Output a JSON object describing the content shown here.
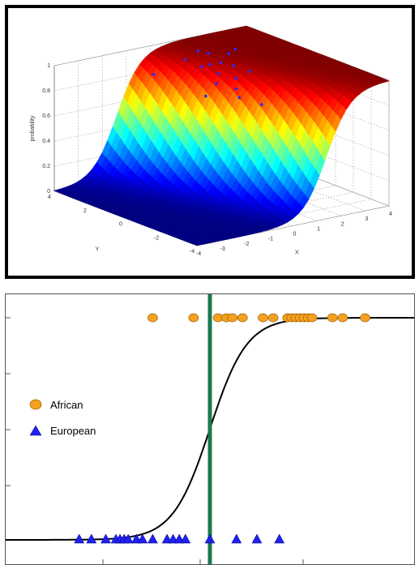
{
  "chart_data": [
    {
      "type": "surface",
      "title": "",
      "xlabel": "X",
      "ylabel": "Y",
      "zlabel": "probability",
      "xlim": [
        -4,
        4
      ],
      "ylim": [
        -4,
        4
      ],
      "zlim": [
        0,
        1
      ],
      "x_ticks": [
        "-4",
        "-3",
        "-2",
        "-1",
        "0",
        "1",
        "2",
        "3",
        "4"
      ],
      "y_ticks": [
        "-4",
        "-2",
        "0",
        "2",
        "4"
      ],
      "z_ticks": [
        "0",
        "0.2",
        "0.4",
        "0.6",
        "0.8",
        "1"
      ],
      "grid": true,
      "surface": "logistic",
      "colormap": "jet",
      "series": [
        {
          "color": "#ff2020",
          "points": [
            [
              -0.8,
              1.6,
              0.02
            ],
            [
              -0.6,
              1.2,
              0.03
            ],
            [
              -0.4,
              1.0,
              0.02
            ],
            [
              -0.9,
              0.8,
              0.01
            ],
            [
              -0.5,
              0.5,
              0.01
            ],
            [
              -0.3,
              0.9,
              0.02
            ],
            [
              -0.7,
              1.5,
              0.05
            ],
            [
              -1.0,
              1.3,
              0.03
            ],
            [
              -0.2,
              1.4,
              0.04
            ],
            [
              -1.6,
              1.6,
              0.0
            ],
            [
              -0.1,
              0.6,
              0.02
            ],
            [
              0.4,
              0.3,
              0.06
            ],
            [
              0.6,
              -0.2,
              0.0
            ],
            [
              -0.5,
              1.9,
              0.05
            ]
          ]
        },
        {
          "color": "#2030ff",
          "points": [
            [
              0.4,
              2.6,
              0.95
            ],
            [
              0.8,
              2.2,
              0.9
            ],
            [
              1.0,
              2.0,
              0.92
            ],
            [
              1.3,
              2.5,
              0.97
            ],
            [
              1.2,
              1.8,
              0.85
            ],
            [
              1.6,
              2.2,
              0.9
            ],
            [
              1.8,
              1.6,
              0.8
            ],
            [
              2.0,
              2.3,
              0.95
            ],
            [
              1.5,
              1.2,
              0.75
            ],
            [
              0.9,
              1.5,
              0.8
            ],
            [
              1.9,
              1.9,
              0.88
            ],
            [
              2.2,
              1.4,
              0.85
            ],
            [
              1.1,
              2.8,
              0.98
            ],
            [
              0.6,
              1.7,
              0.7
            ],
            [
              2.5,
              2.6,
              0.95
            ],
            [
              -0.6,
              3.0,
              0.85
            ],
            [
              1.4,
              0.9,
              0.7
            ],
            [
              2.4,
              1.0,
              0.6
            ]
          ]
        }
      ]
    },
    {
      "type": "scatter",
      "title": "",
      "xlabel": "",
      "ylabel": "",
      "xlim": [
        0,
        1
      ],
      "ylim": [
        0,
        1
      ],
      "curve": "logistic",
      "threshold": 0.5,
      "legend_position": "left-center",
      "series": [
        {
          "name": "African",
          "marker": "circle",
          "color": "#f4a020",
          "y": 1,
          "x": [
            0.36,
            0.46,
            0.52,
            0.54,
            0.555,
            0.58,
            0.63,
            0.655,
            0.69,
            0.7,
            0.71,
            0.72,
            0.73,
            0.74,
            0.75,
            0.8,
            0.825,
            0.88
          ]
        },
        {
          "name": "European",
          "marker": "triangle",
          "color": "#2020ee",
          "y": 0,
          "x": [
            0.18,
            0.21,
            0.245,
            0.27,
            0.28,
            0.29,
            0.3,
            0.32,
            0.335,
            0.36,
            0.395,
            0.41,
            0.425,
            0.44,
            0.5,
            0.565,
            0.615,
            0.67
          ]
        }
      ]
    }
  ]
}
